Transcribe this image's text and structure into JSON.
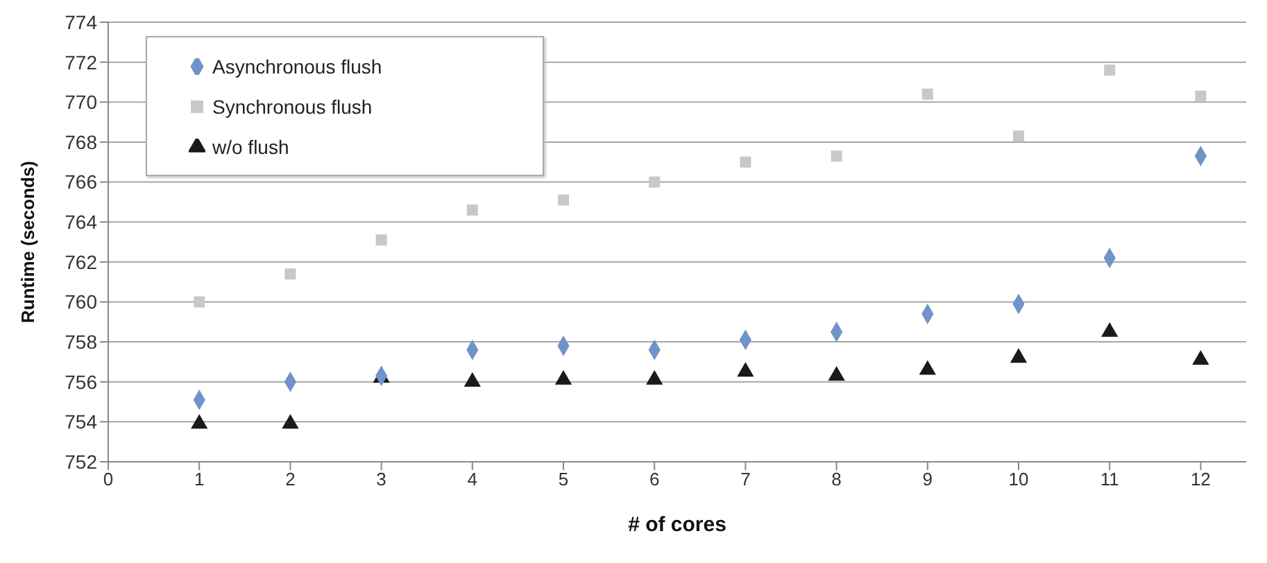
{
  "chart_data": {
    "type": "scatter",
    "xlabel": "# of cores",
    "ylabel": "Runtime (seconds)",
    "x": [
      1,
      2,
      3,
      4,
      5,
      6,
      7,
      8,
      9,
      10,
      11,
      12
    ],
    "series": [
      {
        "name": "Asynchronous flush",
        "color": "#6f94c9",
        "marker": "diamond",
        "values": [
          755.1,
          756.0,
          756.3,
          757.6,
          757.8,
          757.6,
          758.1,
          758.5,
          759.4,
          759.9,
          762.2,
          767.3
        ]
      },
      {
        "name": "Synchronous flush",
        "color": "#c8c8c8",
        "marker": "square",
        "values": [
          760.0,
          761.4,
          763.1,
          764.6,
          765.1,
          766.0,
          767.0,
          767.3,
          770.4,
          768.3,
          771.6,
          770.3
        ]
      },
      {
        "name": "w/o flush",
        "color": "#1a1a1a",
        "marker": "triangle",
        "values": [
          753.9,
          753.9,
          756.2,
          756.0,
          756.1,
          756.1,
          756.5,
          756.3,
          756.6,
          757.2,
          758.5,
          757.1
        ]
      }
    ],
    "xlim": [
      0,
      12.5
    ],
    "xticks": [
      0,
      1,
      2,
      3,
      4,
      5,
      6,
      7,
      8,
      9,
      10,
      11,
      12
    ],
    "ylim": [
      752,
      774
    ],
    "yticks": [
      752,
      754,
      756,
      758,
      760,
      762,
      764,
      766,
      768,
      770,
      772,
      774
    ],
    "grid": "y",
    "legend": "top left"
  }
}
